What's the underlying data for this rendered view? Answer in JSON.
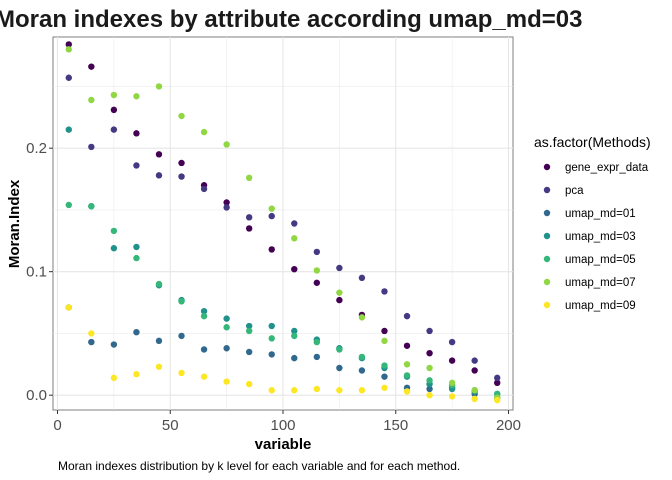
{
  "chart_data": {
    "type": "scatter",
    "title": "Moran indexes by attribute according  umap_md=03",
    "xlabel": "variable",
    "ylabel": "Moran.Index",
    "caption": "Moran indexes distribution by k level for each variable and for each method.",
    "xlim": [
      -2,
      202
    ],
    "ylim": [
      -0.012,
      0.29
    ],
    "x_ticks": [
      0,
      50,
      100,
      150,
      200
    ],
    "y_ticks": [
      0.0,
      0.1,
      0.2
    ],
    "y_tick_labels": [
      "0.0",
      "0.1",
      "0.2"
    ],
    "grid": true,
    "legend_position": "right",
    "legend_title": "as.factor(Methods)",
    "x": [
      5,
      15,
      25,
      35,
      45,
      55,
      65,
      75,
      85,
      95,
      105,
      115,
      125,
      135,
      145,
      155,
      165,
      175,
      185,
      195
    ],
    "series": [
      {
        "name": "gene_expr_data",
        "color": "#440154",
        "values": [
          0.284,
          0.266,
          0.231,
          0.212,
          0.195,
          0.188,
          0.17,
          0.156,
          0.135,
          0.118,
          0.102,
          0.091,
          0.077,
          0.065,
          0.052,
          0.04,
          0.034,
          0.028,
          0.02,
          0.01
        ]
      },
      {
        "name": "pca",
        "color": "#443983",
        "values": [
          0.257,
          0.201,
          0.215,
          0.186,
          0.178,
          0.177,
          0.167,
          0.152,
          0.144,
          0.145,
          0.139,
          0.116,
          0.103,
          0.095,
          0.084,
          0.064,
          0.052,
          0.043,
          0.028,
          0.014
        ]
      },
      {
        "name": "umap_md=01",
        "color": "#31688e",
        "values": [
          0.071,
          0.043,
          0.041,
          0.051,
          0.044,
          0.048,
          0.037,
          0.038,
          0.035,
          0.033,
          0.03,
          0.031,
          0.022,
          0.02,
          0.015,
          0.006,
          0.005,
          0.006,
          0.001,
          -0.002
        ]
      },
      {
        "name": "umap_md=03",
        "color": "#21918c",
        "values": [
          0.215,
          0.153,
          0.119,
          0.12,
          0.089,
          0.077,
          0.068,
          0.062,
          0.056,
          0.056,
          0.052,
          0.045,
          0.038,
          0.03,
          0.022,
          0.015,
          0.009,
          0.005,
          0.003,
          0.001
        ]
      },
      {
        "name": "umap_md=05",
        "color": "#35b779",
        "values": [
          0.154,
          0.153,
          0.133,
          0.111,
          0.09,
          0.076,
          0.064,
          0.055,
          0.052,
          0.046,
          0.048,
          0.043,
          0.037,
          0.031,
          0.024,
          0.016,
          0.012,
          0.008,
          0.004,
          0.001
        ]
      },
      {
        "name": "umap_md=07",
        "color": "#90d743",
        "values": [
          0.28,
          0.239,
          0.243,
          0.242,
          0.25,
          0.226,
          0.213,
          0.203,
          0.176,
          0.151,
          0.127,
          0.101,
          0.083,
          0.063,
          0.044,
          0.025,
          0.022,
          0.01,
          0.004,
          -0.002
        ]
      },
      {
        "name": "umap_md=09",
        "color": "#fde725",
        "values": [
          0.071,
          0.05,
          0.014,
          0.017,
          0.023,
          0.018,
          0.015,
          0.011,
          0.009,
          0.004,
          0.004,
          0.005,
          0.004,
          0.004,
          0.006,
          0.003,
          0.0,
          -0.001,
          -0.003,
          -0.004
        ]
      }
    ]
  }
}
